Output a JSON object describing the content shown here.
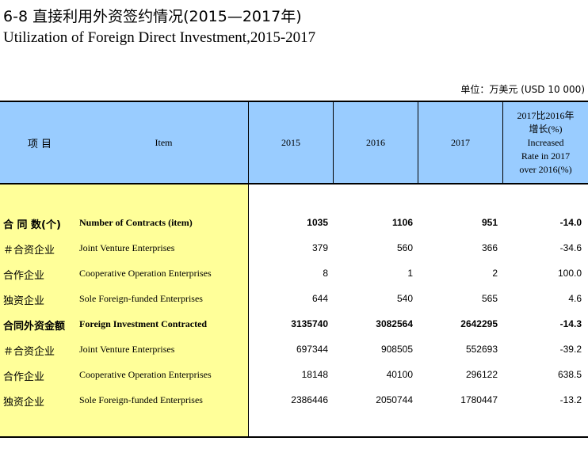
{
  "title": {
    "chinese": "6-8  直接利用外资签约情况(2015—2017年)",
    "english": "Utilization of Foreign Direct Investment,2015-2017"
  },
  "unit": "单位：万美元 (USD 10 000)",
  "header": {
    "item_cn": "项  目",
    "item_en": "Item",
    "y2015": "2015",
    "y2016": "2016",
    "y2017": "2017",
    "growth_lines": [
      "2017比2016年",
      "增长(%)",
      "Increased",
      "Rate in 2017",
      "over 2016(%)"
    ]
  },
  "rows": [
    {
      "cn": "合 同 数(个)",
      "en": "Number of Contracts (item)",
      "v2015": "1035",
      "v2016": "1106",
      "v2017": "951",
      "growth": "-14.0",
      "bold": true
    },
    {
      "cn": "＃合资企业",
      "en": "  Joint Venture Enterprises",
      "v2015": "379",
      "v2016": "560",
      "v2017": "366",
      "growth": "-34.6",
      "bold": false
    },
    {
      "cn": " 合作企业",
      "en": "  Cooperative Operation Enterprises",
      "v2015": "8",
      "v2016": "1",
      "v2017": "2",
      "growth": "100.0",
      "bold": false
    },
    {
      "cn": " 独资企业",
      "en": "  Sole Foreign-funded Enterprises",
      "v2015": "644",
      "v2016": "540",
      "v2017": "565",
      "growth": "4.6",
      "bold": false
    },
    {
      "cn": "合同外资金额",
      "en": "Foreign Investment Contracted",
      "v2015": "3135740",
      "v2016": "3082564",
      "v2017": "2642295",
      "growth": "-14.3",
      "bold": true
    },
    {
      "cn": "＃合资企业",
      "en": "  Joint Venture Enterprises",
      "v2015": "697344",
      "v2016": "908505",
      "v2017": "552693",
      "growth": "-39.2",
      "bold": false
    },
    {
      "cn": " 合作企业",
      "en": "  Cooperative Operation Enterprises",
      "v2015": "18148",
      "v2016": "40100",
      "v2017": "296122",
      "growth": "638.5",
      "bold": false
    },
    {
      "cn": " 独资企业",
      "en": "  Sole Foreign-funded Enterprises",
      "v2015": "2386446",
      "v2016": "2050744",
      "v2017": "1780447",
      "growth": "-13.2",
      "bold": false
    }
  ]
}
